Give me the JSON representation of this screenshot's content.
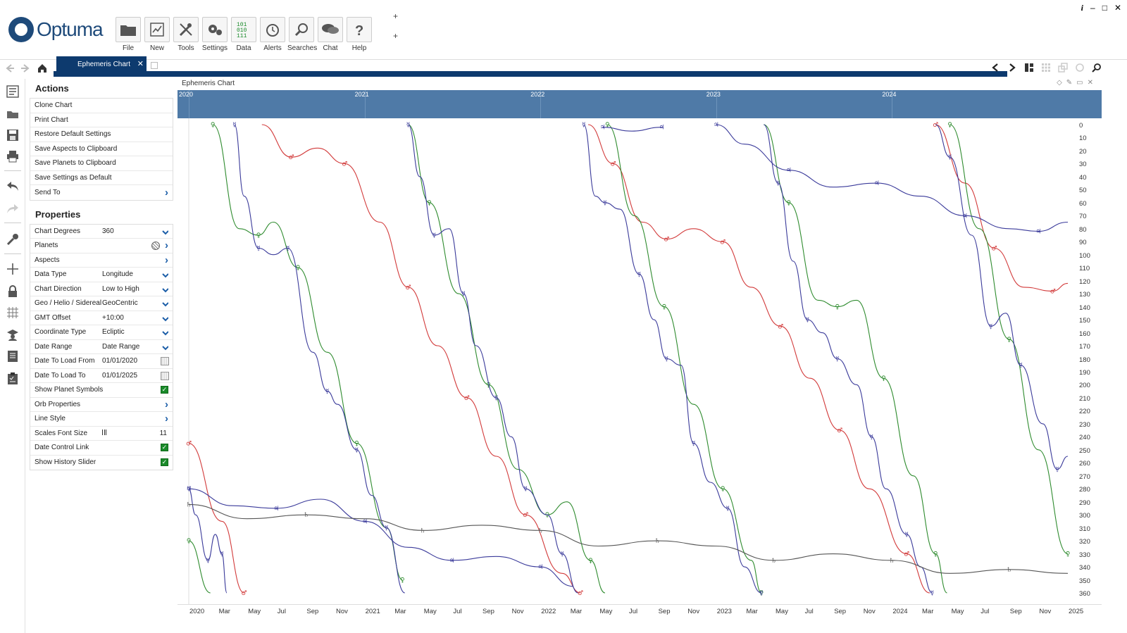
{
  "app": {
    "logo_text": "Optuma"
  },
  "ribbon": [
    {
      "label": "File",
      "icon": "folder-icon"
    },
    {
      "label": "New",
      "icon": "new-chart-icon"
    },
    {
      "label": "Tools",
      "icon": "tools-icon"
    },
    {
      "label": "Settings",
      "icon": "settings-icon"
    },
    {
      "label": "Data",
      "icon": "data-icon"
    },
    {
      "label": "Alerts",
      "icon": "alarm-clock-icon"
    },
    {
      "label": "Searches",
      "icon": "magnifier-icon"
    },
    {
      "label": "Chat",
      "icon": "chat-bubble-icon"
    },
    {
      "label": "Help",
      "icon": "question-icon"
    }
  ],
  "ribbon_extra": {
    "plus1": "+",
    "plus2": "+"
  },
  "window_controls": {
    "info": "i",
    "minimize": "–",
    "maximize": "□",
    "close": "✕"
  },
  "tab": {
    "label": "Ephemeris Chart",
    "close": "✕"
  },
  "actions": {
    "title": "Actions",
    "items": [
      "Clone Chart",
      "Print Chart",
      "Restore Default Settings",
      "Save Aspects to Clipboard",
      "Save Planets to Clipboard",
      "Save Settings as Default",
      "Send To"
    ]
  },
  "properties": {
    "title": "Properties",
    "items": [
      {
        "label": "Chart Degrees",
        "value": "360",
        "ctl": "dropdown"
      },
      {
        "label": "Planets",
        "value": "",
        "ctl": "planets"
      },
      {
        "label": "Aspects",
        "value": "",
        "ctl": "arrow"
      },
      {
        "label": "Data Type",
        "value": "Longitude",
        "ctl": "dropdown"
      },
      {
        "label": "Chart Direction",
        "value": "Low to High",
        "ctl": "dropdown"
      },
      {
        "label": "Geo / Helio / Sidereal",
        "value": "GeoCentric",
        "ctl": "dropdown"
      },
      {
        "label": "GMT Offset",
        "value": "+10:00",
        "ctl": "dropdown"
      },
      {
        "label": "Coordinate Type",
        "value": "Ecliptic",
        "ctl": "dropdown"
      },
      {
        "label": "Date Range",
        "value": "Date Range",
        "ctl": "dropdown"
      },
      {
        "label": "Date To Load From",
        "value": "01/01/2020",
        "ctl": "calendar"
      },
      {
        "label": "Date To Load To",
        "value": "01/01/2025",
        "ctl": "calendar"
      },
      {
        "label": "Show Planet Symbols",
        "value": "",
        "ctl": "check"
      },
      {
        "label": "Orb Properties",
        "value": "",
        "ctl": "arrow"
      },
      {
        "label": "Line Style",
        "value": "",
        "ctl": "arrow"
      },
      {
        "label": "Scales Font Size",
        "value": "11",
        "ctl": "slider"
      },
      {
        "label": "Date Control Link",
        "value": "",
        "ctl": "check"
      },
      {
        "label": "Show History Slider",
        "value": "",
        "ctl": "check"
      }
    ]
  },
  "chart": {
    "title": "Ephemeris Chart",
    "years_top": [
      "2020",
      "2021",
      "2022",
      "2023",
      "2024"
    ],
    "x_ticks": [
      "2020",
      "Mar",
      "May",
      "Jul",
      "Sep",
      "Nov",
      "2021",
      "Mar",
      "May",
      "Jul",
      "Sep",
      "Nov",
      "2022",
      "Mar",
      "May",
      "Jul",
      "Sep",
      "Nov",
      "2023",
      "Mar",
      "May",
      "Jul",
      "Sep",
      "Nov",
      "2024",
      "Mar",
      "May",
      "Jul",
      "Sep",
      "Nov",
      "2025"
    ],
    "y_ticks": [
      "0",
      "10",
      "20",
      "30",
      "40",
      "50",
      "60",
      "70",
      "80",
      "90",
      "100",
      "110",
      "120",
      "130",
      "140",
      "150",
      "160",
      "170",
      "180",
      "190",
      "200",
      "210",
      "220",
      "230",
      "240",
      "250",
      "260",
      "270",
      "280",
      "290",
      "300",
      "310",
      "320",
      "330",
      "340",
      "350",
      "360"
    ]
  },
  "chart_data": {
    "type": "line",
    "title": "Ephemeris Chart",
    "xlabel": "",
    "ylabel": "",
    "x_range": [
      "2020-01-01",
      "2025-01-01"
    ],
    "ylim": [
      0,
      360
    ],
    "y_inverted": true,
    "grid": false,
    "legend": "none",
    "series": [
      {
        "name": "♂",
        "color": "#d23a3a",
        "points": [
          [
            "2020-01-01",
            245
          ],
          [
            "2020-03-10",
            305
          ],
          [
            "2020-04-25",
            360
          ],
          [
            "2020-06-01",
            0
          ],
          [
            "2020-08-01",
            25
          ],
          [
            "2020-09-25",
            18
          ],
          [
            "2020-11-20",
            30
          ],
          [
            "2021-02-01",
            75
          ],
          [
            "2021-04-01",
            125
          ],
          [
            "2021-06-01",
            170
          ],
          [
            "2021-08-01",
            210
          ],
          [
            "2021-10-01",
            255
          ],
          [
            "2021-12-01",
            300
          ],
          [
            "2022-02-15",
            345
          ],
          [
            "2022-03-25",
            365
          ],
          [
            "2022-04-10",
            0
          ],
          [
            "2022-06-01",
            30
          ],
          [
            "2022-08-01",
            75
          ],
          [
            "2022-09-20",
            88
          ],
          [
            "2022-11-15",
            80
          ],
          [
            "2023-01-15",
            90
          ],
          [
            "2023-03-15",
            125
          ],
          [
            "2023-05-15",
            155
          ],
          [
            "2023-07-15",
            195
          ],
          [
            "2023-09-15",
            235
          ],
          [
            "2023-11-15",
            280
          ],
          [
            "2024-02-01",
            330
          ],
          [
            "2024-03-20",
            360
          ],
          [
            "2024-04-01",
            0
          ],
          [
            "2024-06-01",
            45
          ],
          [
            "2024-08-01",
            95
          ],
          [
            "2024-10-01",
            125
          ],
          [
            "2024-12-01",
            128
          ],
          [
            "2025-01-01",
            122
          ]
        ]
      },
      {
        "name": "♀",
        "color": "#2e8b2e",
        "points": [
          [
            "2020-01-01",
            320
          ],
          [
            "2020-02-15",
            360
          ],
          [
            "2020-02-20",
            0
          ],
          [
            "2020-04-15",
            80
          ],
          [
            "2020-05-25",
            85
          ],
          [
            "2020-06-25",
            75
          ],
          [
            "2020-08-15",
            110
          ],
          [
            "2020-10-15",
            175
          ],
          [
            "2020-12-15",
            245
          ],
          [
            "2021-02-15",
            310
          ],
          [
            "2021-03-20",
            350
          ],
          [
            "2021-04-01",
            0
          ],
          [
            "2021-05-15",
            60
          ],
          [
            "2021-07-15",
            130
          ],
          [
            "2021-09-15",
            200
          ],
          [
            "2021-11-15",
            265
          ],
          [
            "2022-01-15",
            300
          ],
          [
            "2022-02-25",
            290
          ],
          [
            "2022-04-15",
            335
          ],
          [
            "2022-05-15",
            360
          ],
          [
            "2022-05-20",
            0
          ],
          [
            "2022-07-15",
            70
          ],
          [
            "2022-09-15",
            140
          ],
          [
            "2022-11-15",
            215
          ],
          [
            "2023-01-15",
            280
          ],
          [
            "2023-03-15",
            335
          ],
          [
            "2023-04-05",
            360
          ],
          [
            "2023-04-10",
            0
          ],
          [
            "2023-06-01",
            60
          ],
          [
            "2023-08-01",
            135
          ],
          [
            "2023-09-10",
            140
          ],
          [
            "2023-10-20",
            135
          ],
          [
            "2023-12-15",
            195
          ],
          [
            "2024-02-15",
            270
          ],
          [
            "2024-04-01",
            330
          ],
          [
            "2024-04-25",
            360
          ],
          [
            "2024-05-01",
            0
          ],
          [
            "2024-07-01",
            80
          ],
          [
            "2024-09-01",
            165
          ],
          [
            "2024-11-01",
            250
          ],
          [
            "2025-01-01",
            330
          ]
        ]
      },
      {
        "name": "☿",
        "color": "#3a3a9a",
        "points": [
          [
            "2020-01-01",
            280
          ],
          [
            "2020-01-15",
            300
          ],
          [
            "2020-02-10",
            335
          ],
          [
            "2020-02-25",
            315
          ],
          [
            "2020-03-10",
            330
          ],
          [
            "2020-03-20",
            360
          ],
          [
            "2020-04-05",
            0
          ],
          [
            "2020-04-25",
            55
          ],
          [
            "2020-05-25",
            95
          ],
          [
            "2020-06-25",
            100
          ],
          [
            "2020-07-25",
            95
          ],
          [
            "2020-09-15",
            175
          ],
          [
            "2020-10-15",
            205
          ],
          [
            "2020-11-05",
            215
          ],
          [
            "2020-12-15",
            250
          ],
          [
            "2021-01-15",
            285
          ],
          [
            "2021-02-15",
            310
          ],
          [
            "2021-03-25",
            360
          ],
          [
            "2021-04-01",
            0
          ],
          [
            "2021-04-25",
            40
          ],
          [
            "2021-05-25",
            85
          ],
          [
            "2021-06-25",
            80
          ],
          [
            "2021-07-25",
            130
          ],
          [
            "2021-08-20",
            170
          ],
          [
            "2021-10-01",
            210
          ],
          [
            "2021-11-01",
            240
          ],
          [
            "2021-12-01",
            280
          ],
          [
            "2022-01-15",
            300
          ],
          [
            "2022-02-15",
            330
          ],
          [
            "2022-03-20",
            360
          ],
          [
            "2022-04-01",
            0
          ],
          [
            "2022-04-25",
            55
          ],
          [
            "2022-05-15",
            60
          ],
          [
            "2022-06-15",
            65
          ],
          [
            "2022-07-25",
            115
          ],
          [
            "2022-08-25",
            150
          ],
          [
            "2022-09-20",
            180
          ],
          [
            "2022-10-20",
            185
          ],
          [
            "2022-11-15",
            245
          ],
          [
            "2022-12-20",
            275
          ],
          [
            "2023-01-25",
            295
          ],
          [
            "2023-03-01",
            340
          ],
          [
            "2023-04-05",
            360
          ],
          [
            "2023-04-10",
            0
          ],
          [
            "2023-05-10",
            45
          ],
          [
            "2023-06-10",
            105
          ],
          [
            "2023-07-10",
            150
          ],
          [
            "2023-08-10",
            160
          ],
          [
            "2023-09-10",
            180
          ],
          [
            "2023-10-20",
            200
          ],
          [
            "2023-11-20",
            240
          ],
          [
            "2023-12-20",
            280
          ],
          [
            "2024-02-01",
            315
          ],
          [
            "2024-03-01",
            340
          ],
          [
            "2024-03-25",
            360
          ],
          [
            "2024-04-01",
            0
          ],
          [
            "2024-05-01",
            25
          ],
          [
            "2024-06-15",
            85
          ],
          [
            "2024-07-25",
            155
          ],
          [
            "2024-08-25",
            145
          ],
          [
            "2024-09-25",
            185
          ],
          [
            "2024-11-10",
            230
          ],
          [
            "2024-12-10",
            265
          ],
          [
            "2025-01-01",
            255
          ]
        ]
      },
      {
        "name": "♃",
        "color": "#3a3a9a",
        "points": [
          [
            "2020-01-01",
            280
          ],
          [
            "2020-04-01",
            293
          ],
          [
            "2020-07-01",
            295
          ],
          [
            "2020-10-01",
            288
          ],
          [
            "2021-01-01",
            305
          ],
          [
            "2021-04-01",
            325
          ],
          [
            "2021-07-01",
            335
          ],
          [
            "2021-10-01",
            332
          ],
          [
            "2022-01-01",
            340
          ],
          [
            "2022-03-10",
            355
          ],
          [
            "2022-05-10",
            2
          ],
          [
            "2022-07-10",
            5
          ],
          [
            "2022-09-10",
            2
          ],
          [
            "2022-11-20",
            360
          ],
          [
            "2023-01-01",
            0
          ],
          [
            "2023-03-01",
            15
          ],
          [
            "2023-06-01",
            35
          ],
          [
            "2023-09-01",
            48
          ],
          [
            "2023-12-01",
            45
          ],
          [
            "2024-03-01",
            55
          ],
          [
            "2024-06-01",
            70
          ],
          [
            "2024-09-01",
            80
          ],
          [
            "2024-11-01",
            82
          ],
          [
            "2025-01-01",
            75
          ]
        ]
      },
      {
        "name": "♄",
        "color": "#555555",
        "points": [
          [
            "2020-01-01",
            292
          ],
          [
            "2020-05-01",
            303
          ],
          [
            "2020-09-01",
            300
          ],
          [
            "2021-01-01",
            303
          ],
          [
            "2021-05-01",
            312
          ],
          [
            "2021-09-01",
            308
          ],
          [
            "2022-01-01",
            312
          ],
          [
            "2022-05-01",
            324
          ],
          [
            "2022-09-01",
            320
          ],
          [
            "2023-01-01",
            324
          ],
          [
            "2023-05-01",
            335
          ],
          [
            "2023-09-01",
            330
          ],
          [
            "2024-01-01",
            335
          ],
          [
            "2024-05-01",
            345
          ],
          [
            "2024-09-01",
            342
          ],
          [
            "2025-01-01",
            345
          ]
        ]
      }
    ]
  },
  "nav": {
    "back": "back-arrow-icon",
    "forward": "forward-arrow-icon",
    "home": "home-icon"
  }
}
